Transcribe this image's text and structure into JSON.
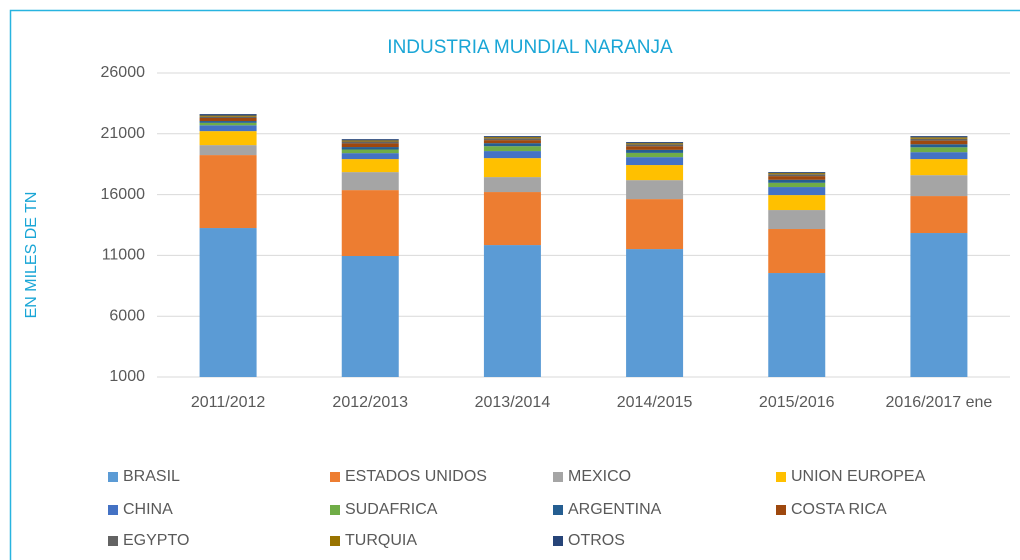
{
  "chart_data": {
    "type": "stacked_bar",
    "title": "INDUSTRIA MUNDIAL NARANJA",
    "y_label": "EN MILES DE TN",
    "categories": [
      "2011/2012",
      "2012/2013",
      "2013/2014",
      "2014/2015",
      "2015/2016",
      "2016/2017 ene"
    ],
    "ylim": [
      1000,
      26000
    ],
    "yticks": [
      1000,
      6000,
      11000,
      16000,
      21000,
      26000
    ],
    "grid": true,
    "legend": "bottom",
    "series": [
      {
        "name": "BRASIL",
        "color": "#5b9bd5",
        "values": [
          13250,
          10950,
          11850,
          11520,
          9550,
          12840
        ]
      },
      {
        "name": "ESTADOS UNIDOS",
        "color": "#ed7d31",
        "values": [
          6000,
          5420,
          4360,
          4110,
          3620,
          3040
        ]
      },
      {
        "name": "MEXICO",
        "color": "#a5a5a5",
        "values": [
          820,
          1480,
          1230,
          1560,
          1560,
          1720
        ]
      },
      {
        "name": "UNION EUROPEA",
        "color": "#ffc000",
        "values": [
          1150,
          1070,
          1560,
          1240,
          1230,
          1320
        ]
      },
      {
        "name": "CHINA",
        "color": "#4472c4",
        "values": [
          480,
          490,
          580,
          650,
          660,
          570
        ]
      },
      {
        "name": "SUDAFRICA",
        "color": "#70ad47",
        "values": [
          200,
          300,
          400,
          350,
          350,
          400
        ]
      },
      {
        "name": "ARGENTINA",
        "color": "#255e91",
        "values": [
          150,
          200,
          250,
          250,
          250,
          250
        ]
      },
      {
        "name": "COSTA RICA",
        "color": "#9e480e",
        "values": [
          250,
          300,
          250,
          300,
          300,
          300
        ]
      },
      {
        "name": "EGYPTO",
        "color": "#636363",
        "values": [
          100,
          150,
          150,
          150,
          150,
          150
        ]
      },
      {
        "name": "TURQUIA",
        "color": "#997300",
        "values": [
          100,
          100,
          100,
          100,
          100,
          120
        ]
      },
      {
        "name": "OTROS",
        "color": "#264478",
        "values": [
          120,
          100,
          80,
          90,
          80,
          100
        ]
      }
    ]
  }
}
